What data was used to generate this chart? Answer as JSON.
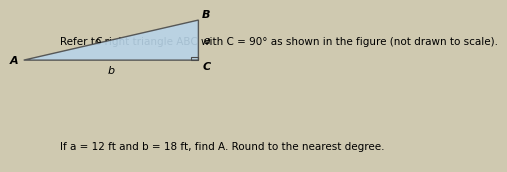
{
  "title_text": "Refer to right triangle ",
  "title_ABC": "ABC",
  "title_mid": " with ",
  "title_C": "C",
  "title_end": " = 90° as shown in the figure (not drawn to scale).",
  "bottom_text1": "If ",
  "bottom_a": "a",
  "bottom_text2": " = 12 ft and ",
  "bottom_b": "b",
  "bottom_text3": " = 18 ft, find ",
  "bottom_A": "A",
  "bottom_text4": ". Round to the nearest degree.",
  "triangle": {
    "A": [
      0.05,
      0.72
    ],
    "B": [
      0.46,
      0.96
    ],
    "C": [
      0.46,
      0.72
    ]
  },
  "fill_color": "#b8d4e8",
  "edge_color": "#4a4a4a",
  "label_A": "A",
  "label_B": "B",
  "label_C": "C",
  "label_a": "a",
  "label_b": "b",
  "label_c": "c",
  "bg_color": "#cfc9b0",
  "font_size_title": 7.5,
  "font_size_labels": 8.0,
  "font_size_bottom": 7.5
}
